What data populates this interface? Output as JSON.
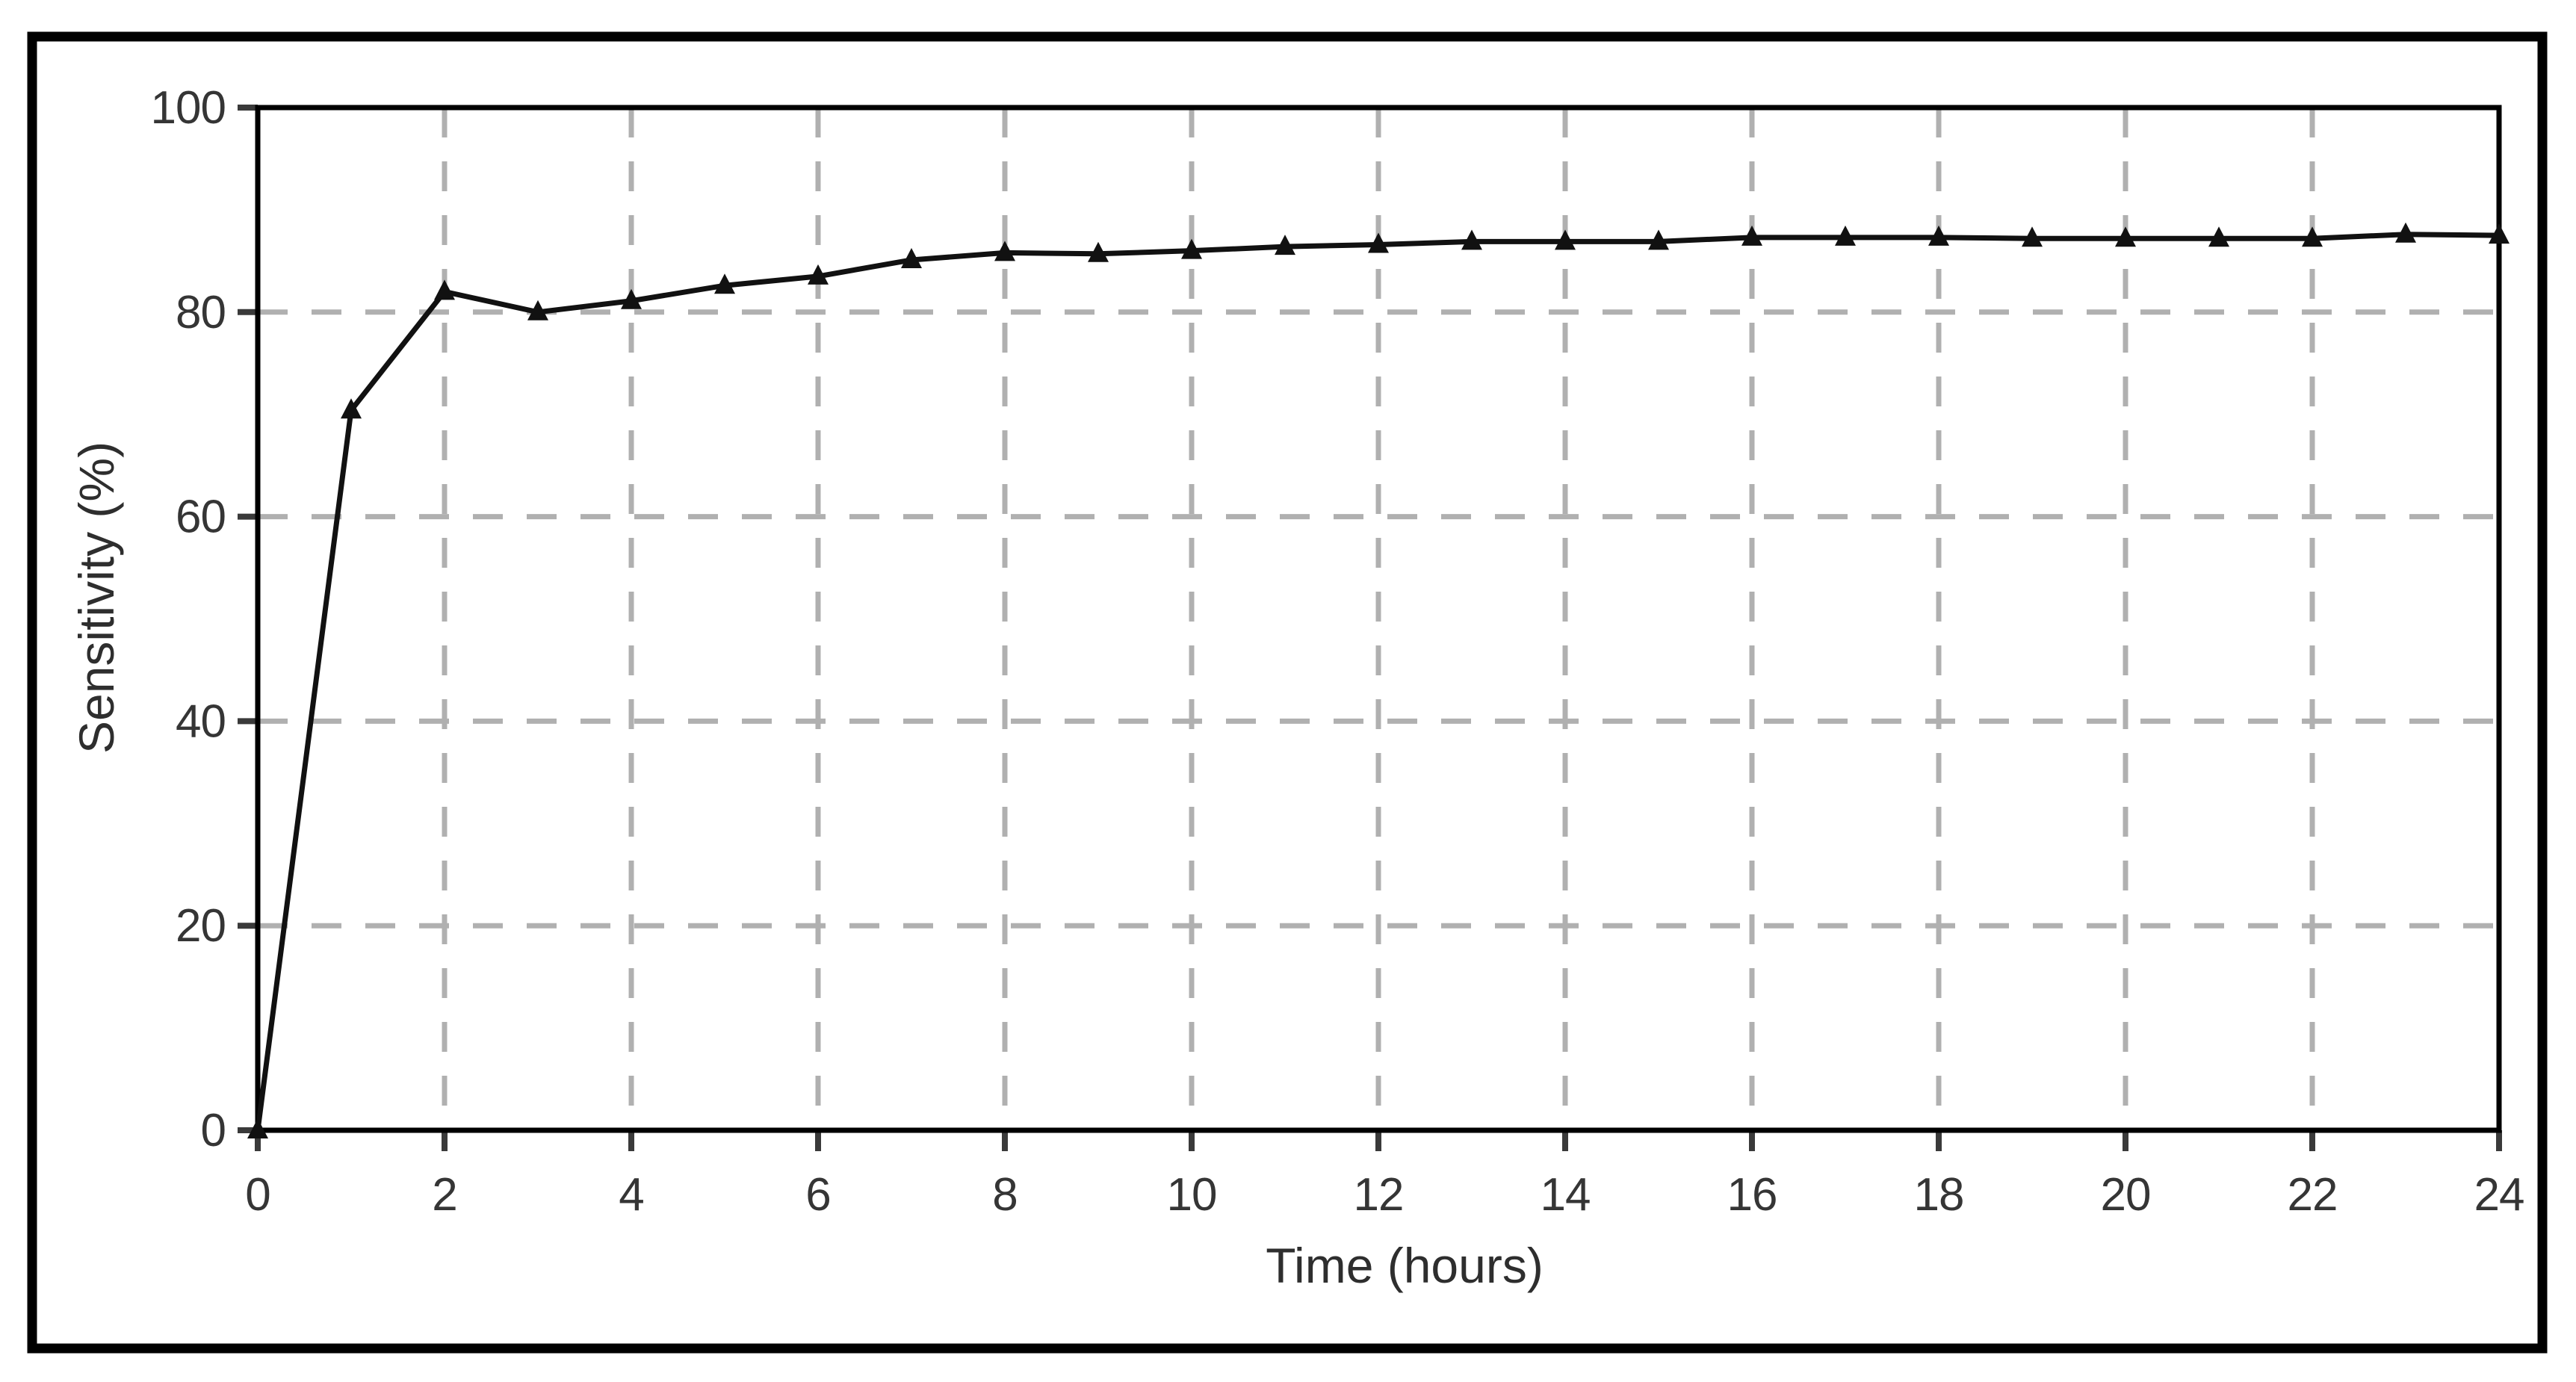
{
  "figure": {
    "background_color": "#ffffff",
    "outer_border_color": "#000000",
    "plot_border_color": "#000000"
  },
  "chart_data": {
    "type": "line",
    "title": "",
    "xlabel": "Time (hours)",
    "ylabel": "Sensitivity (%)",
    "x": [
      0,
      1,
      2,
      3,
      4,
      5,
      6,
      7,
      8,
      9,
      10,
      11,
      12,
      13,
      14,
      15,
      16,
      17,
      18,
      19,
      20,
      21,
      22,
      23,
      24
    ],
    "series": [
      {
        "name": "Sensitivity",
        "values": [
          0,
          70.4,
          82.0,
          80.0,
          81.1,
          82.6,
          83.5,
          85.1,
          85.8,
          85.7,
          86.0,
          86.4,
          86.6,
          86.9,
          86.9,
          86.9,
          87.3,
          87.3,
          87.3,
          87.2,
          87.2,
          87.2,
          87.2,
          87.6,
          87.5
        ]
      }
    ],
    "xlim": [
      0,
      24
    ],
    "ylim": [
      0,
      100
    ],
    "x_ticks": [
      0,
      2,
      4,
      6,
      8,
      10,
      12,
      14,
      16,
      18,
      20,
      22,
      24
    ],
    "y_ticks": [
      0,
      20,
      40,
      60,
      80,
      100
    ],
    "grid": "dashed",
    "legend": "none",
    "gridline_color": "#b0b0b0",
    "tick_color": "#3a3a3a",
    "text_color": "#353535",
    "line_color": "#111111",
    "marker": "triangle-up",
    "marker_color": "#111111"
  }
}
